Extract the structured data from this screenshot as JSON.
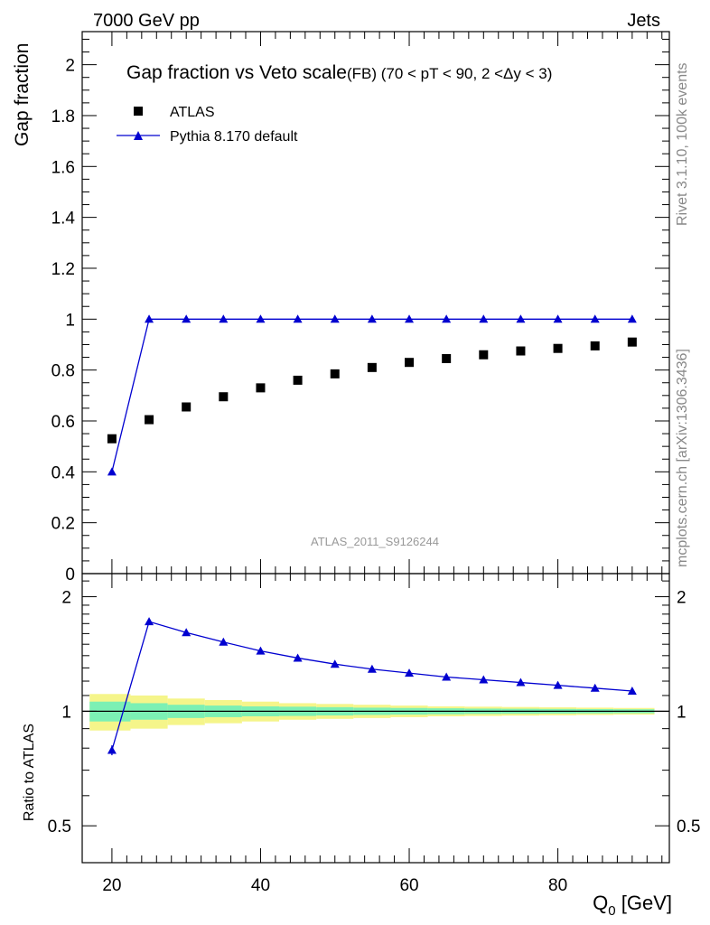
{
  "header": {
    "energy": "7000 GeV pp",
    "process": "Jets"
  },
  "side_labels": {
    "rivet": "Rivet 3.1.10,  100k events",
    "mcplots": "mcplots.cern.ch [arXiv:1306.3436]"
  },
  "watermark": "ATLAS_2011_S9126244",
  "colors": {
    "mc": "#0000d0",
    "data": "#000000",
    "band_inner": "#7cf0b4",
    "band_outer": "#f5f58a"
  },
  "chart_data": [
    {
      "type": "scatter",
      "panel": "main",
      "title": "Gap fraction vs Veto scale",
      "title_suffix": "(FB) (70 < pT <  90, 2 <Δy < 3)",
      "ylabel": "Gap fraction",
      "xlim": [
        16,
        95
      ],
      "ylim": [
        0,
        2.13
      ],
      "yticks": [
        0,
        0.2,
        0.4,
        0.6,
        0.8,
        1,
        1.2,
        1.4,
        1.6,
        1.8,
        2
      ],
      "ytick_labels": [
        "0",
        "0.2",
        "0.4",
        "0.6",
        "0.8",
        "1",
        "1.2",
        "1.4",
        "1.6",
        "1.8",
        "2"
      ],
      "x": [
        20,
        25,
        30,
        35,
        40,
        45,
        50,
        55,
        60,
        65,
        70,
        75,
        80,
        85,
        90
      ],
      "series": [
        {
          "name": "ATLAS",
          "marker": "square",
          "values": [
            0.53,
            0.605,
            0.655,
            0.695,
            0.73,
            0.76,
            0.785,
            0.81,
            0.83,
            0.845,
            0.86,
            0.875,
            0.885,
            0.895,
            0.91
          ]
        },
        {
          "name": "Pythia 8.170 default",
          "marker": "triangle",
          "values": [
            0.4,
            1.0,
            1.0,
            1.0,
            1.0,
            1.0,
            1.0,
            1.0,
            1.0,
            1.0,
            1.0,
            1.0,
            1.0,
            1.0,
            1.0
          ]
        }
      ]
    },
    {
      "type": "line",
      "panel": "ratio",
      "ylabel": "Ratio to ATLAS",
      "xlabel": "Q_0 [GeV]",
      "xlabel_main": "Q",
      "xlabel_sub": "0",
      "xlabel_unit": " [GeV]",
      "xlim": [
        16,
        95
      ],
      "ylim": [
        0.4,
        2.3
      ],
      "yscale": "log",
      "yticks": [
        0.5,
        1,
        2
      ],
      "ytick_labels": [
        "0.5",
        "1",
        "2"
      ],
      "xticks": [
        20,
        40,
        60,
        80
      ],
      "xtick_labels": [
        "20",
        "40",
        "60",
        "80"
      ],
      "x": [
        20,
        25,
        30,
        35,
        40,
        45,
        50,
        55,
        60,
        65,
        70,
        75,
        80,
        85,
        90
      ],
      "series": [
        {
          "name": "Pythia 8.170 default",
          "values": [
            0.79,
            1.72,
            1.61,
            1.52,
            1.44,
            1.38,
            1.33,
            1.29,
            1.26,
            1.23,
            1.21,
            1.19,
            1.17,
            1.15,
            1.13
          ]
        }
      ],
      "data_band_inner": [
        0.06,
        0.05,
        0.04,
        0.035,
        0.03,
        0.028,
        0.025,
        0.022,
        0.02,
        0.018,
        0.016,
        0.015,
        0.014,
        0.013,
        0.012
      ],
      "data_band_outer": [
        0.11,
        0.1,
        0.08,
        0.07,
        0.06,
        0.05,
        0.045,
        0.04,
        0.035,
        0.03,
        0.028,
        0.026,
        0.024,
        0.022,
        0.02
      ]
    }
  ]
}
